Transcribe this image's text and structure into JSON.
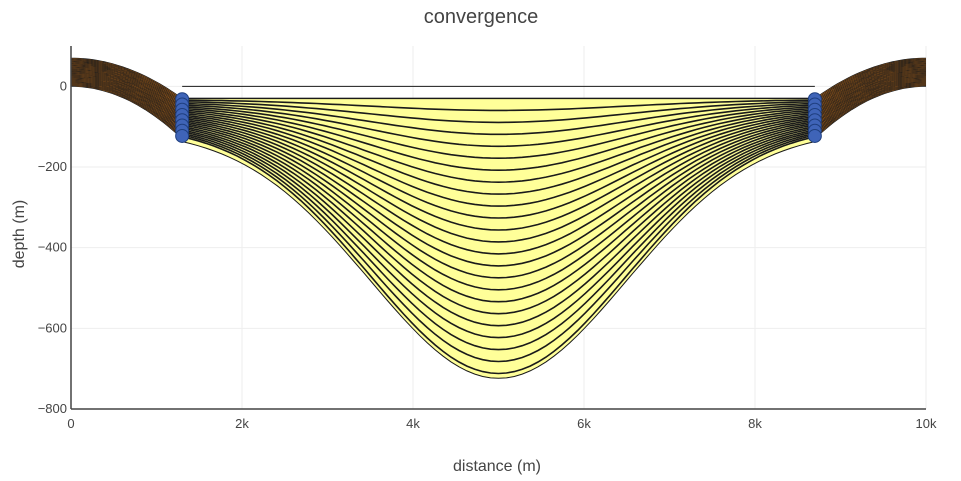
{
  "chart_data": {
    "type": "line",
    "title": "convergence",
    "xlabel": "distance (m)",
    "ylabel": "depth (m)",
    "xlim": [
      0,
      10000
    ],
    "ylim": [
      -800,
      100
    ],
    "x_ticks": [
      0,
      2000,
      4000,
      6000,
      8000,
      10000
    ],
    "x_tick_labels": [
      "0",
      "2k",
      "4k",
      "6k",
      "8k",
      "10k"
    ],
    "y_ticks": [
      0,
      -200,
      -400,
      -600,
      -800
    ],
    "y_tick_labels": [
      "0",
      "−200",
      "−400",
      "−600",
      "−800"
    ],
    "grid": true,
    "legend": "none",
    "sea_level": 0,
    "seafloor_endpoints": {
      "left_x": 1300,
      "right_x": 8700,
      "left_depth": -30,
      "right_depth": -30
    },
    "basin": {
      "center_x": 5000,
      "max_depth": -712,
      "surface_depth": -30
    },
    "series": [
      {
        "values": [
          [
            1300,
            -30
          ],
          [
            5000,
            -30
          ],
          [
            8700,
            -30
          ]
        ]
      },
      {
        "values": [
          [
            1300,
            -50
          ],
          [
            5000,
            -70
          ],
          [
            8700,
            -50
          ]
        ]
      },
      {
        "values": [
          [
            1300,
            -80
          ],
          [
            5000,
            -105
          ],
          [
            8700,
            -80
          ]
        ]
      },
      {
        "values": [
          [
            1300,
            -95
          ],
          [
            5000,
            -700
          ],
          [
            8700,
            -95
          ]
        ]
      }
    ],
    "markers": [
      {
        "x": 1300,
        "depths": [
          -32,
          -45,
          -58,
          -71,
          -84,
          -97,
          -110,
          -123
        ]
      },
      {
        "x": 8700,
        "depths": [
          -32,
          -45,
          -58,
          -71,
          -84,
          -97,
          -110,
          -123
        ]
      }
    ],
    "colors": {
      "fill": "#ffff99",
      "line": "#1a1a1a",
      "flank_fill": "#ff8c1a",
      "marker": "#3f64b8",
      "marker_edge": "#1f3f7f"
    }
  }
}
